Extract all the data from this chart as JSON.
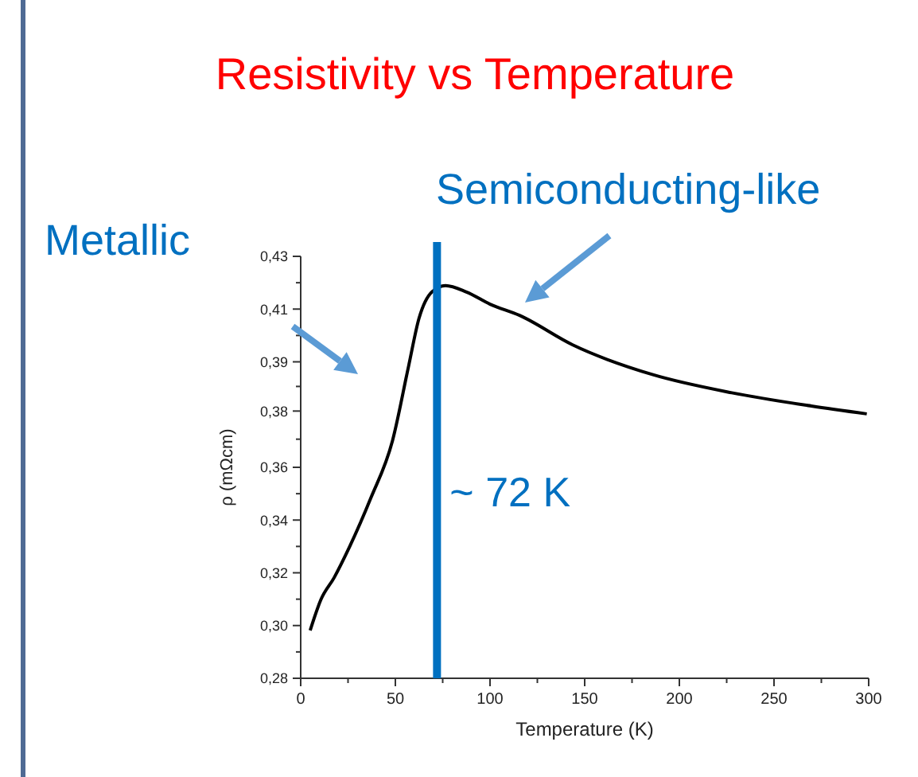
{
  "chart_data": {
    "type": "line",
    "title": "Resistivity vs Temperature",
    "xlabel": "Temperature (K)",
    "ylabel": "ρ (mΩcm)",
    "x": [
      5,
      10.7,
      17.6,
      26,
      37,
      48.5,
      57,
      62.5,
      69.5,
      76.5,
      87.6,
      100,
      115.6,
      143.7,
      185.7,
      227.7,
      269.7,
      299
    ],
    "series": [
      {
        "color": "#000000",
        "values": [
          0.297,
          0.308,
          0.3157,
          0.327,
          0.344,
          0.3645,
          0.391,
          0.408,
          0.4175,
          0.4196,
          0.4173,
          0.413,
          0.409,
          0.3985,
          0.388,
          0.3815,
          0.3768,
          0.374
        ]
      }
    ],
    "xlim": [
      0,
      300
    ],
    "xticks": [
      0,
      50,
      100,
      150,
      200,
      250,
      300
    ],
    "ylim": [
      0.28,
      0.43
    ],
    "yticks": [
      {
        "value": 0.28,
        "label": "0,28"
      },
      {
        "value": 0.29875,
        "label": "0,30"
      },
      {
        "value": 0.3175,
        "label": "0,32"
      },
      {
        "value": 0.33625,
        "label": "0,34"
      },
      {
        "value": 0.355,
        "label": "0,36"
      },
      {
        "value": 0.375,
        "label": "0,38"
      },
      {
        "value": 0.3925,
        "label": "0,39"
      },
      {
        "value": 0.41125,
        "label": "0,41"
      },
      {
        "value": 0.43,
        "label": "0,43"
      }
    ],
    "ref_lines": [
      {
        "axis": "x",
        "value": 72,
        "label": "~ 72 K",
        "color": "#0070c0"
      }
    ],
    "annotations": [
      "Metallic",
      "Semiconducting-like"
    ],
    "grid": false,
    "marker": "none",
    "line_style": "solid"
  }
}
